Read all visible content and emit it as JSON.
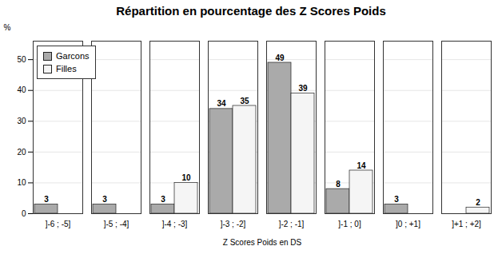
{
  "chart_data": {
    "type": "bar",
    "title": "Répartition en pourcentage des Z Scores Poids",
    "xlabel": "Z Scores Poids en DS",
    "ylabel": "%",
    "categories": [
      "]-6 ; -5]",
      "]-5 ; -4]",
      "]-4 ; -3]",
      "]-3 ; -2]",
      "]-2 ; -1]",
      "]-1 ; 0]",
      "]0 ; +1]",
      "]+1 ; +2]"
    ],
    "series": [
      {
        "name": "Garcons",
        "color": "#aaaaaa",
        "values": [
          3,
          3,
          3,
          34,
          49,
          8,
          3,
          0
        ]
      },
      {
        "name": "Filles",
        "color": "#f5f5f5",
        "values": [
          0,
          0,
          10,
          35,
          39,
          14,
          0,
          2
        ]
      }
    ],
    "ylim": [
      0,
      56
    ],
    "yticks": [
      0,
      10,
      20,
      30,
      40,
      50
    ],
    "grid": true,
    "legend": "upper left",
    "data_labels": true
  }
}
